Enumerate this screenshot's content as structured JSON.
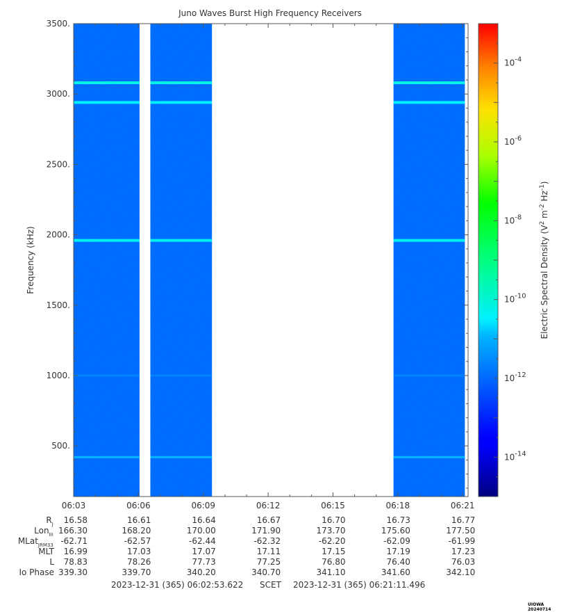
{
  "chart_data": {
    "type": "heatmap",
    "title": "Juno Waves Burst High Frequency Receivers",
    "ylabel": "Frequency (kHz)",
    "ylim": [
      140,
      3500
    ],
    "yticks": [
      "500.",
      "1000.",
      "1500.",
      "2000.",
      "2500.",
      "3000.",
      "3500."
    ],
    "ytick_values": [
      500,
      1000,
      1500,
      2000,
      2500,
      3000,
      3500
    ],
    "xlim_minutes": [
      3.0,
      21.25
    ],
    "xtick_labels": [
      "06:03",
      "06:06",
      "06:09",
      "06:12",
      "06:15",
      "06:18",
      "06:21"
    ],
    "xtick_minutes": [
      3,
      6,
      9,
      12,
      15,
      18,
      21
    ],
    "data_intervals_minutes": [
      [
        3.0,
        6.05
      ],
      [
        6.55,
        9.4
      ],
      [
        17.8,
        21.1
      ]
    ],
    "background_level_log10": -12,
    "emission_lines_khz": [
      {
        "freq": 3080,
        "level_log10": -10.2
      },
      {
        "freq": 2940,
        "level_log10": -10.5
      },
      {
        "freq": 1960,
        "level_log10": -10.3
      },
      {
        "freq": 420,
        "level_log10": -10.9
      },
      {
        "freq": 1000,
        "level_log10": -11.4
      }
    ],
    "colorbar": {
      "label": "Electric Spectral Density (V2 m-2 Hz-1)",
      "range_log10": [
        -15,
        -3
      ],
      "tick_exponents": [
        -14,
        -12,
        -10,
        -8,
        -6,
        -4
      ]
    }
  },
  "ephemeris": {
    "labels": [
      "RJ",
      "LonIII",
      "MLatJRM33",
      "MLT",
      "L",
      "Io Phase"
    ],
    "rows": [
      [
        "16.58",
        "16.61",
        "16.64",
        "16.67",
        "16.70",
        "16.73",
        "16.77"
      ],
      [
        "166.30",
        "168.20",
        "170.00",
        "171.90",
        "173.70",
        "175.60",
        "177.50"
      ],
      [
        "-62.71",
        "-62.57",
        "-62.44",
        "-62.32",
        "-62.20",
        "-62.09",
        "-61.99"
      ],
      [
        "16.99",
        "17.03",
        "17.07",
        "17.11",
        "17.15",
        "17.19",
        "17.23"
      ],
      [
        "78.83",
        "78.26",
        "77.73",
        "77.25",
        "76.80",
        "76.40",
        "76.03"
      ],
      [
        "339.30",
        "339.70",
        "340.20",
        "340.70",
        "341.10",
        "341.60",
        "342.10"
      ]
    ]
  },
  "footer": {
    "start": "2023-12-31 (365) 06:02:53.622",
    "scet": "SCET",
    "end": "2023-12-31 (365) 06:21:11.496"
  },
  "stamp": "UIOWA 20240714"
}
